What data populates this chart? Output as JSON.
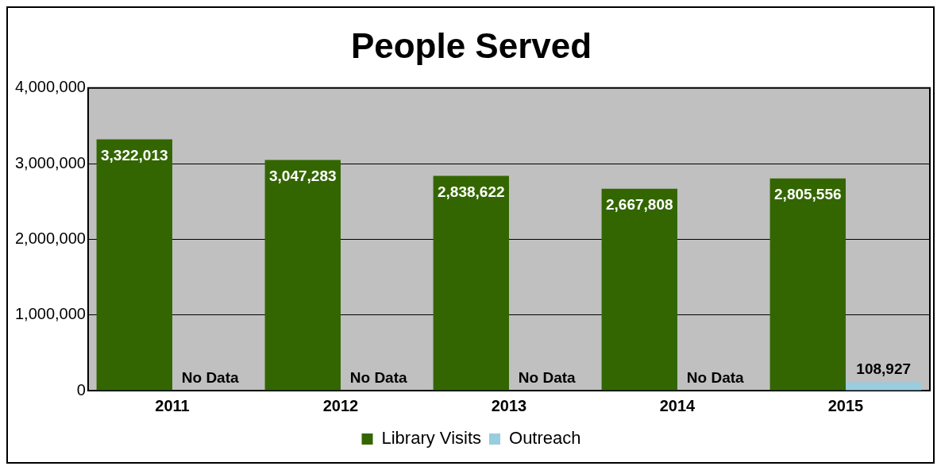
{
  "chart_data": {
    "type": "bar",
    "title": "People Served",
    "categories": [
      "2011",
      "2012",
      "2013",
      "2014",
      "2015"
    ],
    "series": [
      {
        "name": "Library Visits",
        "color": "#336600",
        "values": [
          3322013,
          3047283,
          2838622,
          2667808,
          2805556
        ],
        "value_labels": [
          "3,322,013",
          "3,047,283",
          "2,838,622",
          "2,667,808",
          "2,805,556"
        ]
      },
      {
        "name": "Outreach",
        "color": "#99ccdd",
        "values": [
          null,
          null,
          null,
          null,
          108927
        ],
        "value_labels": [
          "No Data",
          "No Data",
          "No Data",
          "No Data",
          "108,927"
        ]
      }
    ],
    "ylim": [
      0,
      4000000
    ],
    "yticks": [
      0,
      {
        "value": 1000000,
        "label": "1,000,000"
      },
      {
        "value": 2000000,
        "label": "2,000,000"
      },
      {
        "value": 3000000,
        "label": "3,000,000"
      },
      {
        "value": 4000000,
        "label": "4,000,000"
      }
    ],
    "grid": "y",
    "legend": "bottom"
  }
}
